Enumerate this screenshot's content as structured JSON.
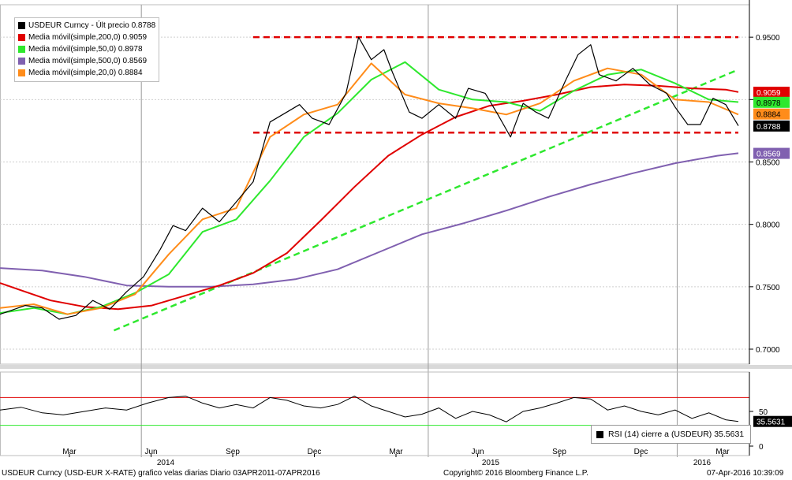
{
  "chart_data": [
    {
      "type": "candlestick-with-lines",
      "x_tick_labels": [
        "Mar",
        "Jun",
        "Sep",
        "Dec",
        "Mar",
        "Jun",
        "Sep",
        "Dec",
        "Mar"
      ],
      "year_labels": [
        "2014",
        "2015",
        "2016"
      ],
      "y_tick_labels": [
        "0.9500",
        "0.9000",
        "0.8500",
        "0.8000",
        "0.7500",
        "0.7000"
      ],
      "ylim": [
        0.688,
        0.976
      ],
      "grid": true,
      "legend_placement": "top-left",
      "legend": [
        {
          "label": "USDEUR Curncy - Últ precio 0.8788",
          "color": "#000000"
        },
        {
          "label": "Media móvil(simple,200,0)   0.9059",
          "color": "#e00000"
        },
        {
          "label": "Media móvil(simple,50,0)    0.8978",
          "color": "#2ee82e"
        },
        {
          "label": "Media móvil(simple,500,0)   0.8569",
          "color": "#8060b0"
        },
        {
          "label": "Media móvil(simple,20,0)    0.8884",
          "color": "#ff8c1a"
        }
      ],
      "series": [
        {
          "name": "USDEUR Curncy",
          "color": "#000000",
          "points": [
            [
              0,
              0.728
            ],
            [
              6,
              0.735
            ],
            [
              10,
              0.733
            ],
            [
              14,
              0.724
            ],
            [
              18,
              0.727
            ],
            [
              22,
              0.739
            ],
            [
              26,
              0.732
            ],
            [
              30,
              0.746
            ],
            [
              34,
              0.758
            ],
            [
              38,
              0.78
            ],
            [
              41,
              0.799
            ],
            [
              44,
              0.795
            ],
            [
              48,
              0.813
            ],
            [
              52,
              0.802
            ],
            [
              57,
              0.822
            ],
            [
              60,
              0.834
            ],
            [
              64,
              0.882
            ],
            [
              68,
              0.89
            ],
            [
              71,
              0.896
            ],
            [
              74,
              0.885
            ],
            [
              78,
              0.88
            ],
            [
              82,
              0.905
            ],
            [
              85,
              0.95
            ],
            [
              88,
              0.932
            ],
            [
              91,
              0.94
            ],
            [
              93,
              0.922
            ],
            [
              97,
              0.89
            ],
            [
              100,
              0.885
            ],
            [
              104,
              0.896
            ],
            [
              108,
              0.885
            ],
            [
              111,
              0.909
            ],
            [
              115,
              0.905
            ],
            [
              118,
              0.888
            ],
            [
              121,
              0.87
            ],
            [
              124,
              0.897
            ],
            [
              127,
              0.89
            ],
            [
              130,
              0.885
            ],
            [
              134,
              0.915
            ],
            [
              137,
              0.936
            ],
            [
              140,
              0.944
            ],
            [
              142,
              0.92
            ],
            [
              146,
              0.915
            ],
            [
              150,
              0.925
            ],
            [
              154,
              0.912
            ],
            [
              158,
              0.905
            ],
            [
              160,
              0.894
            ],
            [
              163,
              0.88
            ],
            [
              166,
              0.88
            ],
            [
              169,
              0.901
            ],
            [
              172,
              0.896
            ],
            [
              175,
              0.879
            ]
          ]
        },
        {
          "name": "Media móvil(simple,200,0)",
          "color": "#e00000",
          "points": [
            [
              0,
              0.753
            ],
            [
              6,
              0.746
            ],
            [
              12,
              0.739
            ],
            [
              20,
              0.734
            ],
            [
              28,
              0.732
            ],
            [
              36,
              0.735
            ],
            [
              44,
              0.743
            ],
            [
              52,
              0.751
            ],
            [
              60,
              0.761
            ],
            [
              68,
              0.777
            ],
            [
              76,
              0.803
            ],
            [
              84,
              0.83
            ],
            [
              92,
              0.855
            ],
            [
              100,
              0.872
            ],
            [
              108,
              0.886
            ],
            [
              116,
              0.895
            ],
            [
              124,
              0.899
            ],
            [
              132,
              0.904
            ],
            [
              140,
              0.91
            ],
            [
              148,
              0.912
            ],
            [
              156,
              0.911
            ],
            [
              164,
              0.909
            ],
            [
              172,
              0.908
            ],
            [
              175,
              0.906
            ]
          ]
        },
        {
          "name": "Media móvil(simple,50,0)",
          "color": "#2ee82e",
          "points": [
            [
              0,
              0.729
            ],
            [
              8,
              0.733
            ],
            [
              16,
              0.728
            ],
            [
              24,
              0.734
            ],
            [
              32,
              0.745
            ],
            [
              40,
              0.76
            ],
            [
              48,
              0.794
            ],
            [
              56,
              0.804
            ],
            [
              64,
              0.835
            ],
            [
              72,
              0.87
            ],
            [
              80,
              0.889
            ],
            [
              88,
              0.916
            ],
            [
              96,
              0.93
            ],
            [
              104,
              0.908
            ],
            [
              112,
              0.9
            ],
            [
              120,
              0.898
            ],
            [
              128,
              0.891
            ],
            [
              136,
              0.907
            ],
            [
              144,
              0.92
            ],
            [
              152,
              0.924
            ],
            [
              160,
              0.913
            ],
            [
              168,
              0.9
            ],
            [
              175,
              0.898
            ]
          ]
        },
        {
          "name": "Media móvil(simple,500,0)",
          "color": "#8060b0",
          "points": [
            [
              0,
              0.765
            ],
            [
              10,
              0.763
            ],
            [
              20,
              0.758
            ],
            [
              30,
              0.751
            ],
            [
              40,
              0.75
            ],
            [
              50,
              0.75
            ],
            [
              60,
              0.752
            ],
            [
              70,
              0.756
            ],
            [
              80,
              0.764
            ],
            [
              90,
              0.778
            ],
            [
              100,
              0.792
            ],
            [
              110,
              0.801
            ],
            [
              120,
              0.811
            ],
            [
              130,
              0.822
            ],
            [
              140,
              0.832
            ],
            [
              150,
              0.841
            ],
            [
              160,
              0.849
            ],
            [
              170,
              0.855
            ],
            [
              175,
              0.857
            ]
          ]
        },
        {
          "name": "Media móvil(simple,20,0)",
          "color": "#ff8c1a",
          "points": [
            [
              0,
              0.733
            ],
            [
              8,
              0.736
            ],
            [
              16,
              0.728
            ],
            [
              24,
              0.733
            ],
            [
              32,
              0.744
            ],
            [
              40,
              0.776
            ],
            [
              48,
              0.804
            ],
            [
              56,
              0.813
            ],
            [
              64,
              0.87
            ],
            [
              72,
              0.888
            ],
            [
              80,
              0.896
            ],
            [
              88,
              0.929
            ],
            [
              96,
              0.904
            ],
            [
              104,
              0.897
            ],
            [
              112,
              0.893
            ],
            [
              120,
              0.888
            ],
            [
              128,
              0.897
            ],
            [
              136,
              0.915
            ],
            [
              144,
              0.925
            ],
            [
              152,
              0.92
            ],
            [
              160,
              0.9
            ],
            [
              168,
              0.898
            ],
            [
              175,
              0.888
            ]
          ]
        }
      ],
      "reference_lines": [
        {
          "kind": "resistance",
          "y": 0.95,
          "color": "#e00000",
          "style": "dashed"
        },
        {
          "kind": "support",
          "y": 0.8735,
          "color": "#e00000",
          "style": "dashed"
        },
        {
          "kind": "trendline",
          "from": [
            27,
            0.715
          ],
          "to": [
            175,
            0.924
          ],
          "color": "#2ee82e",
          "style": "dashed"
        }
      ],
      "value_tags": [
        {
          "text": "0.9059",
          "bg": "#e00000",
          "fg": "#ffffff",
          "y": 0.9059
        },
        {
          "text": "0.8978",
          "bg": "#2ee82e",
          "fg": "#000000",
          "y": 0.8978
        },
        {
          "text": "0.8884",
          "bg": "#ff8c1a",
          "fg": "#000000",
          "y": 0.8884
        },
        {
          "text": "0.8788",
          "bg": "#000000",
          "fg": "#ffffff",
          "y": 0.8788
        },
        {
          "text": "0.8569",
          "bg": "#8060b0",
          "fg": "#ffffff",
          "y": 0.8569
        }
      ]
    },
    {
      "type": "line",
      "title": "RSI (14) cierre a (USDEUR) 35.5631",
      "y_tick_labels": [
        "50",
        "0"
      ],
      "ylim": [
        0,
        100
      ],
      "reference_lines": [
        {
          "y": 70,
          "color": "#e00000"
        },
        {
          "y": 30,
          "color": "#2ee82e"
        }
      ],
      "value_tag": {
        "text": "35.5631",
        "bg": "#000000",
        "fg": "#ffffff",
        "y": 35.5631
      },
      "series": [
        {
          "name": "RSI (14)",
          "color": "#000000",
          "points": [
            [
              0,
              52
            ],
            [
              5,
              56
            ],
            [
              10,
              48
            ],
            [
              15,
              45
            ],
            [
              20,
              50
            ],
            [
              25,
              55
            ],
            [
              30,
              52
            ],
            [
              35,
              62
            ],
            [
              40,
              70
            ],
            [
              44,
              72
            ],
            [
              48,
              62
            ],
            [
              52,
              55
            ],
            [
              56,
              60
            ],
            [
              60,
              55
            ],
            [
              64,
              70
            ],
            [
              68,
              66
            ],
            [
              72,
              58
            ],
            [
              76,
              55
            ],
            [
              80,
              60
            ],
            [
              84,
              72
            ],
            [
              88,
              58
            ],
            [
              92,
              50
            ],
            [
              96,
              42
            ],
            [
              100,
              46
            ],
            [
              104,
              55
            ],
            [
              108,
              40
            ],
            [
              112,
              50
            ],
            [
              116,
              45
            ],
            [
              120,
              35
            ],
            [
              124,
              50
            ],
            [
              128,
              55
            ],
            [
              132,
              62
            ],
            [
              136,
              70
            ],
            [
              140,
              68
            ],
            [
              144,
              52
            ],
            [
              148,
              58
            ],
            [
              152,
              50
            ],
            [
              156,
              45
            ],
            [
              160,
              52
            ],
            [
              164,
              40
            ],
            [
              168,
              48
            ],
            [
              172,
              38
            ],
            [
              175,
              35.6
            ]
          ]
        }
      ]
    }
  ],
  "footer": {
    "left": "USDEUR Curncy (USD-EUR X-RATE) grafico velas diarias  Diario 03APR2011-07APR2016",
    "center": "Copyright© 2016 Bloomberg Finance L.P.",
    "right": "07-Apr-2016 10:39:09"
  }
}
